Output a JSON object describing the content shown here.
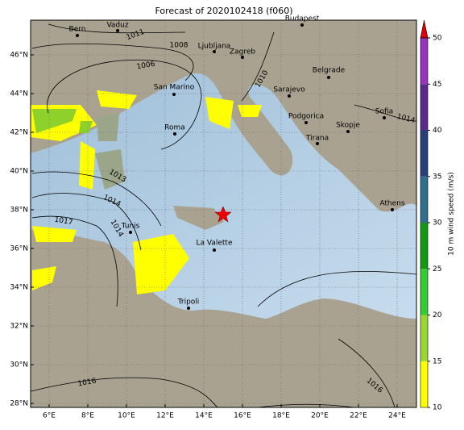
{
  "map": {
    "title": "Forecast of 2020102418 (f060)",
    "lon_ticks": [
      {
        "value": 6,
        "label": "6°E"
      },
      {
        "value": 8,
        "label": "8°E"
      },
      {
        "value": 10,
        "label": "10°E"
      },
      {
        "value": 12,
        "label": "12°E"
      },
      {
        "value": 14,
        "label": "14°E"
      },
      {
        "value": 16,
        "label": "16°E"
      },
      {
        "value": 18,
        "label": "18°E"
      },
      {
        "value": 20,
        "label": "20°E"
      },
      {
        "value": 22,
        "label": "22°E"
      },
      {
        "value": 24,
        "label": "24°E"
      }
    ],
    "lat_ticks": [
      {
        "value": 28,
        "label": "28°N"
      },
      {
        "value": 30,
        "label": "30°N"
      },
      {
        "value": 32,
        "label": "32°N"
      },
      {
        "value": 34,
        "label": "34°N"
      },
      {
        "value": 36,
        "label": "36°N"
      },
      {
        "value": 38,
        "label": "38°N"
      },
      {
        "value": 40,
        "label": "40°N"
      },
      {
        "value": 42,
        "label": "42°N"
      },
      {
        "value": 44,
        "label": "44°N"
      },
      {
        "value": 46,
        "label": "46°N"
      }
    ],
    "cities": [
      "Bern",
      "Vaduz",
      "Budapest",
      "Ljubljana",
      "Zagreb",
      "San Marino",
      "Belgrade",
      "Sarajevo",
      "Roma",
      "Podgorica",
      "Skopje",
      "Sofia",
      "Tirana",
      "Athens",
      "Tunis",
      "La Valette",
      "Tripoli"
    ],
    "isobar_labels": [
      "1011",
      "1008",
      "1006",
      "1010",
      "1013",
      "1014",
      "1017",
      "1014",
      "1014",
      "1016",
      "1016"
    ]
  },
  "colorbar": {
    "label": "10 m wind speed (m/s)",
    "ticks": [
      10,
      15,
      20,
      25,
      30,
      35,
      40,
      45,
      50
    ],
    "colors": [
      "#ffff00",
      "#99d633",
      "#33cc33",
      "#119911",
      "#2e6e8e",
      "#27407a",
      "#5a2a8a",
      "#9933bb"
    ],
    "extend_color": "#dd0000"
  }
}
